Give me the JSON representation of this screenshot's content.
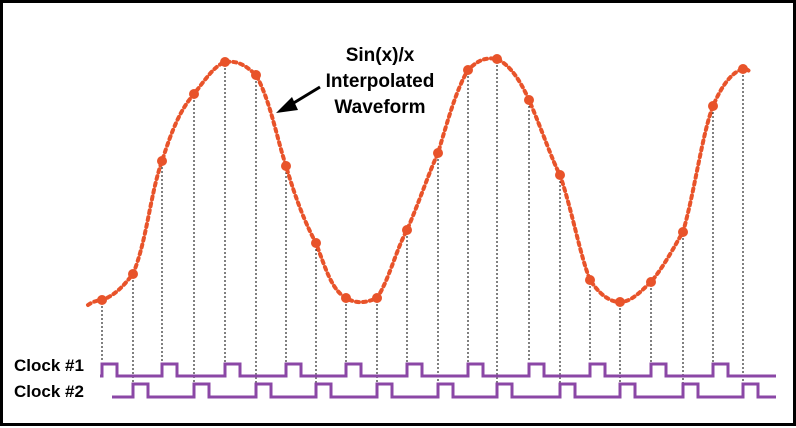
{
  "annotation": {
    "line1": "Sin(x)/x",
    "line2": "Interpolated",
    "line3": "Waveform"
  },
  "clocks": [
    {
      "label": "Clock #1"
    },
    {
      "label": "Clock #2"
    }
  ],
  "colors": {
    "waveform": "#e8532a",
    "sample_points": "#e8532a",
    "clock_signals": "#8b47a6",
    "sample_lines": "#000000",
    "border": "#000000"
  },
  "sample_count": 22
}
